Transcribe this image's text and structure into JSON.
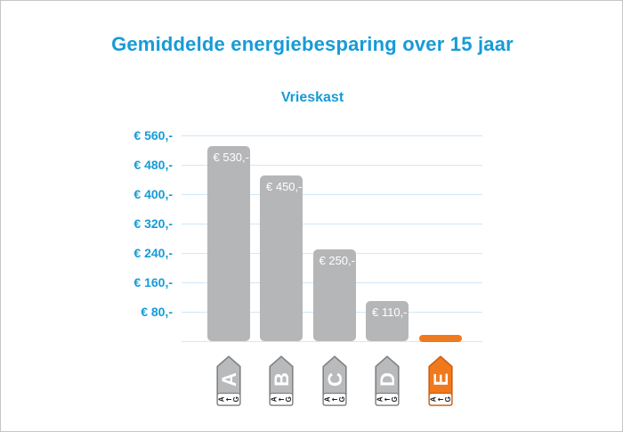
{
  "title": "Gemiddelde energiebesparing over 15 jaar",
  "subtitle": "Vrieskast",
  "chart_data": {
    "type": "bar",
    "title": "Gemiddelde energiebesparing over 15 jaar",
    "subtitle": "Vrieskast",
    "categories": [
      "A",
      "B",
      "C",
      "D",
      "E"
    ],
    "values": [
      530,
      450,
      250,
      110,
      0
    ],
    "bar_value_labels": [
      "€ 530,-",
      "€ 450,-",
      "€ 250,-",
      "€ 110,-",
      ""
    ],
    "bar_colors": [
      "#b5b6b7",
      "#b5b6b7",
      "#b5b6b7",
      "#b5b6b7",
      "#f1791d"
    ],
    "xlabel": "",
    "ylabel": "",
    "y_axis": {
      "tick_labels": [
        "€ 560,-",
        "€ 480,-",
        "€ 400,-",
        "€ 320,-",
        "€ 240,-",
        "€ 160,-",
        "€ 80,-"
      ],
      "tick_values": [
        560,
        480,
        400,
        320,
        240,
        160,
        80
      ],
      "range": [
        0,
        560
      ],
      "grid": true
    },
    "legend": "none",
    "note": "E category shown as flat orange marker at zero savings"
  },
  "energy_labels": [
    {
      "letter": "A",
      "scale_text": "A←G",
      "body_color": "#b9babc",
      "border_color": "#7f8184",
      "letter_color": "#ffffff"
    },
    {
      "letter": "B",
      "scale_text": "A←G",
      "body_color": "#b9babc",
      "border_color": "#7f8184",
      "letter_color": "#ffffff"
    },
    {
      "letter": "C",
      "scale_text": "A←G",
      "body_color": "#b9babc",
      "border_color": "#7f8184",
      "letter_color": "#ffffff"
    },
    {
      "letter": "D",
      "scale_text": "A←G",
      "body_color": "#b9babc",
      "border_color": "#7f8184",
      "letter_color": "#ffffff"
    },
    {
      "letter": "E",
      "scale_text": "A←G",
      "body_color": "#f1791d",
      "border_color": "#cc5f0e",
      "letter_color": "#ffffff"
    }
  ],
  "colors": {
    "accent_blue": "#169bd7",
    "grid_blue": "#cfe8f8",
    "bar_gray": "#b5b6b7",
    "highlight_orange": "#f1791d",
    "background": "#ffffff",
    "canvas_border": "#c6c7c9",
    "scale_text_dark": "#1d1d1d"
  }
}
